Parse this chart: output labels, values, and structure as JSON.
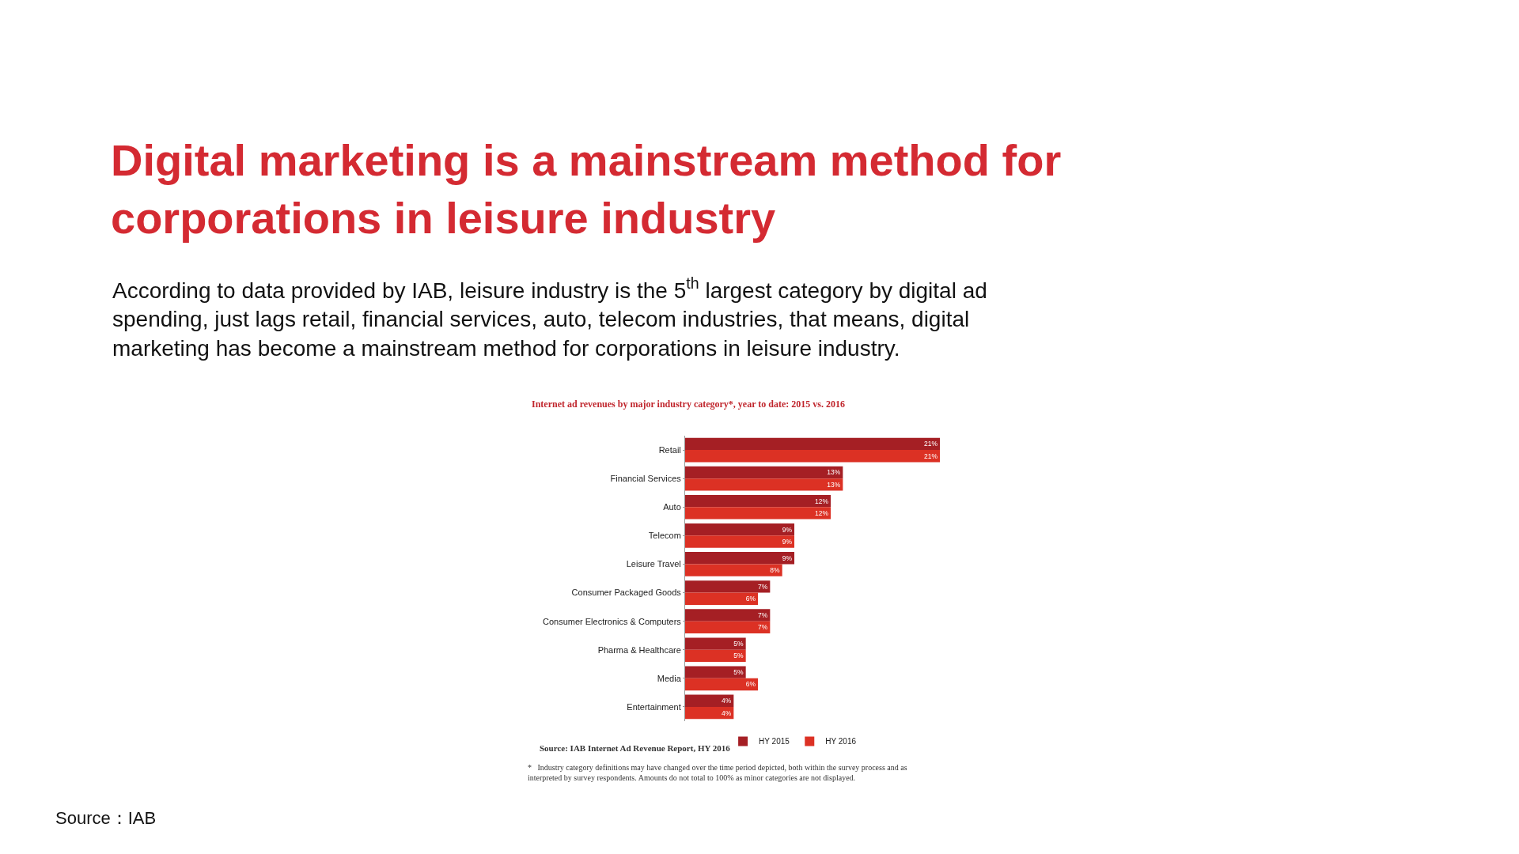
{
  "chart_data": {
    "type": "bar",
    "orientation": "horizontal",
    "title": "Digital marketing is a mainstream method for corporations in leisure industry",
    "subtitle": "According to data provided by IAB, leisure industry is the 5$^{th}$ largest category by digital ad spending, just lags retail, financial services, auto, telecom industries, that means, digital marketing has become a mainstream method for corporations in leisure industry.",
    "categories": [
      "Retail",
      "Financial Services",
      "Auto",
      "Telecom",
      "Leisure Travel",
      "Consumer Packaged Goods",
      "Consumer Electronics & Computers",
      "Pharma & Healthcare",
      "Media",
      "Entertainment"
    ],
    "series": [
      {
        "name": "HY 2015",
        "color": "#a51f24",
        "values": [
          21,
          13,
          12,
          9,
          9,
          7,
          7,
          5,
          5,
          4
        ],
        "value_labels": [
          "21%",
          "13%",
          "12%",
          "9%",
          "9%",
          "7%",
          "7%",
          "5%",
          "5%",
          "4%"
        ]
      },
      {
        "name": "HY 2016",
        "color": "#dc3124",
        "values": [
          21,
          13,
          12,
          9,
          8,
          6,
          7,
          5,
          6,
          4
        ],
        "value_labels": [
          "21%",
          "13%",
          "12%",
          "9%",
          "8%",
          "6%",
          "7%",
          "5%",
          "6%",
          "4%"
        ]
      }
    ],
    "tick_labels": "y",
    "legend": "bottom",
    "annotations": [
      "Internet ad revenues by major industry category*, year to date: 2015 vs. 2016",
      "Source: IAB Internet Ad Revenue Report, HY 2016",
      "*   Industry category definitions may have changed over the time period depicted, both within the survey process and as interpreted by survey respondents. Amounts do not total to 100% as minor categories are not displayed.",
      "Source：IAB"
    ]
  }
}
